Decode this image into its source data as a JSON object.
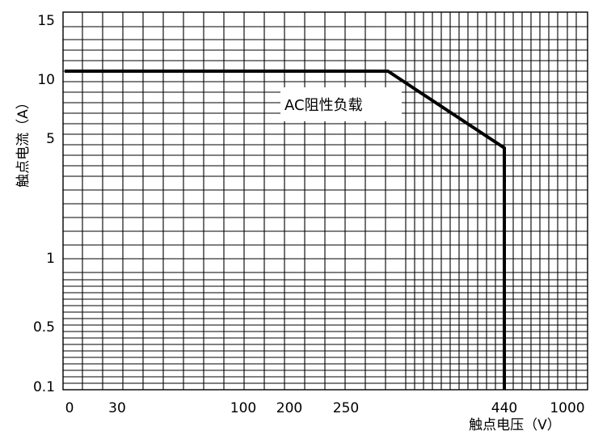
{
  "chart_data": {
    "type": "line",
    "title": "",
    "xlabel": "触点电压（V）",
    "ylabel": "触点电流（A）",
    "x_tick_labels": [
      "0",
      "30",
      "100",
      "200",
      "250",
      "440",
      "1000"
    ],
    "y_tick_labels": [
      "15",
      "10",
      "5",
      "1",
      "0.5",
      "0.1"
    ],
    "grid": true,
    "series": [
      {
        "name": "AC阻性负载",
        "points": [
          {
            "x": "0",
            "y": 10
          },
          {
            "x": "250",
            "y": 10
          },
          {
            "x": "440",
            "y": 5
          },
          {
            "x": "440",
            "y": 0.1
          }
        ]
      }
    ],
    "annotation": "AC阻性负载"
  }
}
